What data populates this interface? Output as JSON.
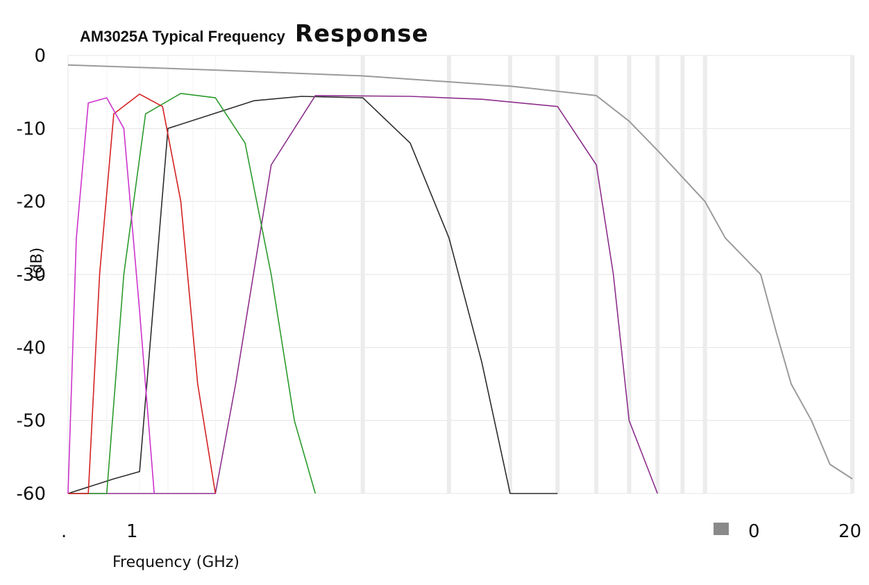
{
  "chart_data": {
    "type": "line",
    "title": {
      "part1": "AM3025A Typical Frequency",
      "part2": "Response"
    },
    "xlabel": "Frequency (GHz)",
    "ylabel": "(dB)",
    "xscale": "log",
    "xlim": [
      0.5,
      20
    ],
    "ylim": [
      -60,
      0
    ],
    "x_tick_labels": [
      ".",
      "1",
      "0",
      "20"
    ],
    "y_ticks": [
      0,
      -10,
      -20,
      -30,
      -40,
      -50,
      -60
    ],
    "y_tick_labels": [
      "0",
      "-10",
      "-20",
      "-30",
      "-40",
      "-50",
      "-60"
    ],
    "grid": true,
    "legend": "none",
    "series": [
      {
        "color": "#9a9a9a",
        "x": [
          0.5,
          1,
          2,
          4,
          6,
          7,
          8,
          10,
          11,
          13,
          14,
          15,
          16.5,
          18,
          20
        ],
        "y": [
          -1.3,
          -2,
          -2.8,
          -4.2,
          -5.5,
          -9,
          -13,
          -20,
          -25,
          -30,
          -38,
          -45,
          -50,
          -56,
          -58
        ]
      },
      {
        "color": "#2b2b2b",
        "x": [
          0.5,
          0.62,
          0.7,
          0.8,
          1.2,
          1.5,
          2,
          2.5,
          3,
          3.5,
          4,
          5
        ],
        "y": [
          -60,
          -58,
          -57,
          -10,
          -6.2,
          -5.6,
          -5.8,
          -12,
          -25,
          -42,
          -60,
          -60
        ]
      },
      {
        "color": "#8c2e8c",
        "x": [
          0.5,
          1.0,
          1.1,
          1.3,
          1.6,
          2.5,
          3.5,
          5.0,
          6.0,
          6.5,
          7.0,
          8.0
        ],
        "y": [
          -60,
          -60,
          -45,
          -15,
          -5.5,
          -5.6,
          -6.0,
          -7.0,
          -15,
          -30,
          -50,
          -60
        ]
      },
      {
        "color": "#2a9a2a",
        "x": [
          0.5,
          0.6,
          0.65,
          0.72,
          0.85,
          1.0,
          1.15,
          1.3,
          1.45,
          1.6
        ],
        "y": [
          -60,
          -60,
          -30,
          -8,
          -5.2,
          -5.8,
          -12,
          -30,
          -50,
          -60
        ]
      },
      {
        "color": "#d42020",
        "x": [
          0.5,
          0.55,
          0.58,
          0.62,
          0.7,
          0.78,
          0.85,
          0.92,
          1.0
        ],
        "y": [
          -60,
          -60,
          -30,
          -8,
          -5.3,
          -7,
          -20,
          -45,
          -60
        ]
      },
      {
        "color": "#cc33cc",
        "x": [
          0.5,
          0.52,
          0.55,
          0.6,
          0.65,
          0.7,
          0.75
        ],
        "y": [
          -60,
          -25,
          -6.5,
          -5.8,
          -10,
          -35,
          -60
        ]
      }
    ]
  }
}
